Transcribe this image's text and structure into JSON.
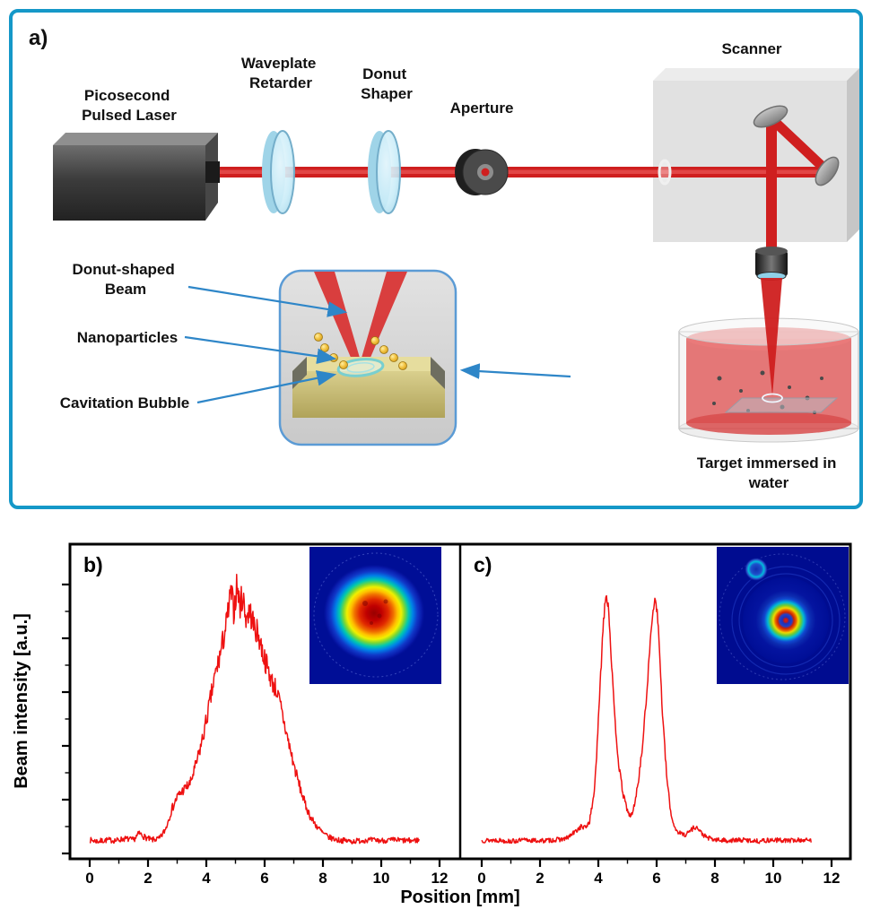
{
  "figure": {
    "panel_a": "a)",
    "panel_b": "b)",
    "panel_c": "c)"
  },
  "diagram": {
    "labels": {
      "laser": [
        "Picosecond",
        "Pulsed Laser"
      ],
      "waveplate": [
        "Waveplate",
        "Retarder"
      ],
      "donut_shaper": [
        "Donut",
        "Shaper"
      ],
      "aperture": "Aperture",
      "scanner": "Scanner",
      "target": [
        "Target immersed in",
        "water"
      ],
      "donut_beam": [
        "Donut-shaped",
        "Beam"
      ],
      "nanoparticles": "Nanoparticles",
      "cavitation_bubble": "Cavitation Bubble"
    }
  },
  "charts": {
    "xlabel": "Position [mm]",
    "ylabel": "Beam intensity [a.u.]"
  },
  "colors": {
    "panel_border": "#1598c8",
    "beam_red": "#cf1f1f",
    "callout_blue": "#2e86c8",
    "curve_red": "#ee1111",
    "lens_fill": "#cdeefb",
    "gold": "#f2c13d",
    "substrate_tan": "#d9cf8a",
    "inset_bg_blue": "#000e96"
  },
  "chart_data": [
    {
      "type": "line",
      "panel": "b",
      "description": "Gaussian beam intensity cross-section with camera image inset",
      "xlabel": "Position [mm]",
      "ylabel": "Beam intensity [a.u.]",
      "xticks": [
        0,
        2,
        4,
        6,
        8,
        10,
        12
      ],
      "xlim": [
        -0.7,
        12.7
      ],
      "ylim": [
        0,
        1.05
      ],
      "color": "#ee1111",
      "noise": {
        "base": 0.008,
        "scale": 0.05,
        "seed": 7
      },
      "x": [
        0,
        0.3,
        0.6,
        0.9,
        1.2,
        1.5,
        1.7,
        1.9,
        2.1,
        2.4,
        2.6,
        2.8,
        3.0,
        3.2,
        3.45,
        3.7,
        3.9,
        4.1,
        4.3,
        4.5,
        4.7,
        4.85,
        4.95,
        5.05,
        5.15,
        5.25,
        5.35,
        5.5,
        5.65,
        5.8,
        5.95,
        6.1,
        6.25,
        6.4,
        6.55,
        6.7,
        6.85,
        7.0,
        7.2,
        7.4,
        7.6,
        7.8,
        8.0,
        8.2,
        8.5,
        9.0,
        9.5,
        10.0,
        10.5,
        11.0,
        11.3
      ],
      "y": [
        0.05,
        0.045,
        0.05,
        0.048,
        0.055,
        0.05,
        0.075,
        0.06,
        0.05,
        0.055,
        0.09,
        0.16,
        0.21,
        0.235,
        0.26,
        0.35,
        0.44,
        0.55,
        0.66,
        0.75,
        0.86,
        0.97,
        0.9,
        1.0,
        0.92,
        0.96,
        0.88,
        0.9,
        0.84,
        0.81,
        0.74,
        0.69,
        0.64,
        0.61,
        0.545,
        0.47,
        0.4,
        0.33,
        0.25,
        0.18,
        0.13,
        0.1,
        0.075,
        0.06,
        0.05,
        0.045,
        0.05,
        0.048,
        0.05,
        0.047,
        0.05
      ]
    },
    {
      "type": "line",
      "panel": "c",
      "description": "Donut-shaped beam intensity cross-section (double peak) with camera image inset",
      "xlabel": "Position [mm]",
      "ylabel": "Beam intensity [a.u.]",
      "xticks": [
        0,
        2,
        4,
        6,
        8,
        10,
        12
      ],
      "xlim": [
        -0.7,
        12.7
      ],
      "ylim": [
        0,
        1.05
      ],
      "color": "#ee1111",
      "noise": {
        "base": 0.008,
        "scale": 0.015,
        "seed": 13
      },
      "x": [
        0,
        0.5,
        1.0,
        1.5,
        2.0,
        2.5,
        2.9,
        3.2,
        3.4,
        3.55,
        3.7,
        3.85,
        3.95,
        4.05,
        4.15,
        4.25,
        4.35,
        4.45,
        4.55,
        4.7,
        4.85,
        5.0,
        5.1,
        5.2,
        5.35,
        5.5,
        5.65,
        5.78,
        5.88,
        5.98,
        6.08,
        6.2,
        6.35,
        6.5,
        6.65,
        6.8,
        7.0,
        7.2,
        7.35,
        7.5,
        7.7,
        8.0,
        8.5,
        9.0,
        9.5,
        10.0,
        10.5,
        11.0,
        11.3
      ],
      "y": [
        0.048,
        0.05,
        0.045,
        0.05,
        0.047,
        0.05,
        0.055,
        0.08,
        0.1,
        0.095,
        0.12,
        0.22,
        0.38,
        0.6,
        0.82,
        0.97,
        0.92,
        0.72,
        0.52,
        0.33,
        0.22,
        0.16,
        0.135,
        0.16,
        0.25,
        0.38,
        0.58,
        0.78,
        0.92,
        0.95,
        0.8,
        0.52,
        0.28,
        0.14,
        0.09,
        0.075,
        0.07,
        0.09,
        0.1,
        0.08,
        0.06,
        0.05,
        0.048,
        0.05,
        0.046,
        0.05,
        0.048,
        0.05,
        0.048
      ]
    }
  ]
}
